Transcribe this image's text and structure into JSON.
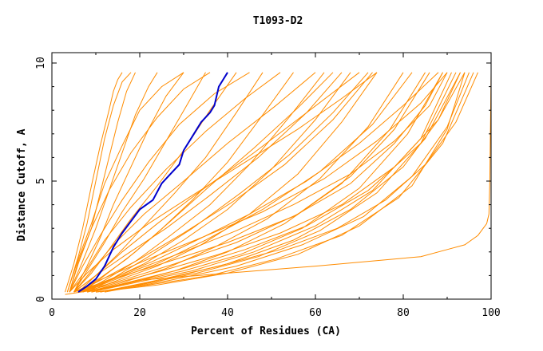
{
  "chart_data": {
    "type": "line",
    "title": "T1093-D2",
    "xlabel": "Percent of Residues (CA)",
    "ylabel": "Distance Cutoff, A",
    "xlim": [
      0,
      100
    ],
    "ylim": [
      0,
      10
    ],
    "x_ticks": [
      0,
      20,
      40,
      60,
      80,
      100
    ],
    "x_tick_labels": [
      "0",
      "20",
      "40",
      "60",
      "80",
      "100"
    ],
    "y_ticks": [
      0,
      5,
      10
    ],
    "y_tick_labels": [
      "0",
      "5",
      "10"
    ],
    "grid": false,
    "legend": "none",
    "colors": {
      "highlight": "#0000cc",
      "others": "#ff8c00"
    },
    "highlight_series": {
      "x": [
        6,
        8,
        10,
        12,
        14,
        16,
        18,
        20,
        23,
        25,
        27,
        29,
        30,
        32,
        34,
        36,
        37,
        38,
        40
      ],
      "y": [
        0.3,
        0.55,
        0.85,
        1.4,
        2.2,
        2.8,
        3.3,
        3.8,
        4.2,
        4.9,
        5.3,
        5.7,
        6.3,
        6.9,
        7.5,
        7.9,
        8.2,
        9.0,
        9.6
      ]
    },
    "series": [
      {
        "x": [
          3,
          5,
          7,
          9,
          11,
          13,
          14,
          15,
          16
        ],
        "y": [
          0.3,
          1.5,
          3.0,
          4.8,
          6.5,
          8.0,
          8.8,
          9.3,
          9.6
        ]
      },
      {
        "x": [
          3.5,
          6,
          8,
          10,
          12,
          14,
          16,
          18
        ],
        "y": [
          0.3,
          1.8,
          3.2,
          5.0,
          6.8,
          8.2,
          9.2,
          9.6
        ]
      },
      {
        "x": [
          4,
          6,
          9,
          11,
          13,
          15,
          17,
          19
        ],
        "y": [
          0.3,
          1.5,
          3.0,
          4.5,
          6.0,
          7.5,
          8.8,
          9.6
        ]
      },
      {
        "x": [
          4,
          7,
          10,
          13,
          16,
          19,
          22,
          24
        ],
        "y": [
          0.3,
          1.6,
          3.0,
          4.6,
          6.2,
          7.8,
          9.0,
          9.6
        ]
      },
      {
        "x": [
          5,
          8,
          11,
          14,
          18,
          22,
          26,
          30
        ],
        "y": [
          0.3,
          1.4,
          2.6,
          4.0,
          5.6,
          7.2,
          8.6,
          9.6
        ]
      },
      {
        "x": [
          5,
          8,
          12,
          16,
          21,
          26,
          31,
          35
        ],
        "y": [
          0.3,
          1.2,
          2.4,
          3.7,
          5.1,
          6.7,
          8.3,
          9.6
        ]
      },
      {
        "x": [
          5,
          9,
          13,
          18,
          24,
          30,
          36,
          42
        ],
        "y": [
          0.3,
          1.1,
          2.1,
          3.4,
          4.8,
          6.3,
          8.0,
          9.6
        ]
      },
      {
        "x": [
          6,
          10,
          15,
          21,
          28,
          35,
          42,
          48
        ],
        "y": [
          0.3,
          1.0,
          1.9,
          3.1,
          4.5,
          6.0,
          7.9,
          9.6
        ]
      },
      {
        "x": [
          6,
          11,
          17,
          24,
          32,
          40,
          48,
          55
        ],
        "y": [
          0.3,
          0.9,
          1.7,
          2.8,
          4.2,
          5.8,
          7.8,
          9.6
        ]
      },
      {
        "x": [
          7,
          12,
          19,
          27,
          36,
          45,
          54,
          62
        ],
        "y": [
          0.3,
          0.8,
          1.6,
          2.7,
          4.0,
          5.7,
          7.7,
          9.6
        ]
      },
      {
        "x": [
          7,
          13,
          21,
          30,
          40,
          50,
          60,
          68
        ],
        "y": [
          0.3,
          0.8,
          1.5,
          2.5,
          3.8,
          5.5,
          7.6,
          9.6
        ]
      },
      {
        "x": [
          8,
          15,
          24,
          34,
          45,
          56,
          66,
          74
        ],
        "y": [
          0.3,
          0.8,
          1.4,
          2.3,
          3.6,
          5.3,
          7.5,
          9.6
        ]
      },
      {
        "x": [
          8,
          16,
          26,
          37,
          49,
          61,
          72,
          80
        ],
        "y": [
          0.3,
          0.7,
          1.3,
          2.2,
          3.4,
          5.1,
          7.3,
          9.6
        ]
      },
      {
        "x": [
          9,
          17,
          28,
          40,
          53,
          66,
          77,
          85
        ],
        "y": [
          0.3,
          0.7,
          1.2,
          2.0,
          3.2,
          4.9,
          7.2,
          9.6
        ]
      },
      {
        "x": [
          9,
          18,
          30,
          43,
          57,
          70,
          81,
          89
        ],
        "y": [
          0.3,
          0.7,
          1.2,
          1.9,
          3.0,
          4.7,
          7.0,
          9.6
        ]
      },
      {
        "x": [
          10,
          20,
          33,
          47,
          61,
          74,
          85,
          93
        ],
        "y": [
          0.3,
          0.6,
          1.1,
          1.8,
          2.9,
          4.5,
          6.8,
          9.6
        ]
      },
      {
        "x": [
          10,
          22,
          36,
          51,
          66,
          79,
          89,
          96
        ],
        "y": [
          0.3,
          0.6,
          1.0,
          1.7,
          2.7,
          4.3,
          6.6,
          9.6
        ]
      },
      {
        "x": [
          6,
          12,
          20,
          30,
          42,
          55,
          68,
          78,
          86,
          90
        ],
        "y": [
          0.3,
          0.7,
          1.3,
          2.0,
          2.9,
          4.0,
          5.3,
          6.7,
          8.2,
          9.6
        ]
      },
      {
        "x": [
          7,
          15,
          25,
          38,
          52,
          66,
          78,
          88,
          94
        ],
        "y": [
          0.3,
          0.7,
          1.2,
          1.9,
          2.8,
          4.0,
          5.6,
          7.6,
          9.6
        ]
      },
      {
        "x": [
          8,
          18,
          30,
          44,
          58,
          72,
          84,
          92
        ],
        "y": [
          0.3,
          0.7,
          1.3,
          2.1,
          3.1,
          4.6,
          6.6,
          9.6
        ]
      },
      {
        "x": [
          11,
          25,
          40,
          55,
          68,
          80,
          88,
          93
        ],
        "y": [
          0.3,
          0.8,
          1.5,
          2.5,
          3.8,
          5.6,
          7.6,
          9.6
        ]
      },
      {
        "x": [
          12,
          27,
          42,
          57,
          71,
          82,
          90,
          95
        ],
        "y": [
          0.3,
          0.8,
          1.4,
          2.3,
          3.5,
          5.2,
          7.3,
          9.6
        ]
      },
      {
        "x": [
          6,
          14,
          23,
          33,
          45,
          58,
          70,
          80,
          88
        ],
        "y": [
          0.3,
          0.9,
          1.6,
          2.5,
          3.6,
          5.0,
          6.6,
          8.2,
          9.6
        ]
      },
      {
        "x": [
          5,
          10,
          16,
          24,
          34,
          46,
          58,
          70
        ],
        "y": [
          0.3,
          1.0,
          2.0,
          3.2,
          4.6,
          6.2,
          7.9,
          9.6
        ]
      },
      {
        "x": [
          5,
          9,
          14,
          21,
          30,
          40,
          51,
          60
        ],
        "y": [
          0.3,
          1.2,
          2.3,
          3.6,
          5.0,
          6.6,
          8.2,
          9.6
        ]
      },
      {
        "x": [
          4,
          8,
          12,
          18,
          26,
          35,
          44,
          52
        ],
        "y": [
          0.3,
          1.3,
          2.5,
          3.9,
          5.5,
          7.1,
          8.5,
          9.6
        ]
      },
      {
        "x": [
          4,
          7,
          11,
          16,
          22,
          29,
          37,
          45
        ],
        "y": [
          0.3,
          1.4,
          2.7,
          4.2,
          5.8,
          7.4,
          8.7,
          9.6
        ]
      },
      {
        "x": [
          4,
          6,
          9,
          13,
          18,
          24,
          30,
          36
        ],
        "y": [
          0.3,
          1.6,
          3.0,
          4.6,
          6.2,
          7.7,
          8.9,
          9.6
        ]
      },
      {
        "x": [
          3.5,
          6,
          9,
          12,
          16,
          20,
          25,
          30
        ],
        "y": [
          0.3,
          1.7,
          3.2,
          4.9,
          6.5,
          8.0,
          9.0,
          9.6
        ]
      },
      {
        "x": [
          5,
          10,
          17,
          26,
          36,
          47,
          58,
          66
        ],
        "y": [
          0.3,
          1.0,
          1.9,
          3.0,
          4.4,
          6.0,
          7.9,
          9.6
        ]
      },
      {
        "x": [
          6,
          12,
          20,
          30,
          41,
          53,
          64,
          73
        ],
        "y": [
          0.3,
          0.9,
          1.7,
          2.8,
          4.1,
          5.7,
          7.6,
          9.6
        ]
      },
      {
        "x": [
          7,
          14,
          24,
          35,
          48,
          61,
          73,
          82
        ],
        "y": [
          0.3,
          0.8,
          1.5,
          2.5,
          3.8,
          5.4,
          7.4,
          9.6
        ]
      },
      {
        "x": [
          9,
          19,
          32,
          46,
          60,
          73,
          84,
          91
        ],
        "y": [
          0.3,
          0.7,
          1.2,
          2.0,
          3.1,
          4.6,
          6.8,
          9.6
        ]
      },
      {
        "x": [
          10,
          24,
          40,
          56,
          70,
          82,
          90,
          94
        ],
        "y": [
          0.3,
          0.6,
          1.1,
          1.9,
          3.1,
          4.8,
          7.2,
          9.6
        ]
      },
      {
        "x": [
          8,
          14,
          22,
          32,
          43,
          54,
          64,
          72
        ],
        "y": [
          0.3,
          0.9,
          1.8,
          3.0,
          4.5,
          6.1,
          7.9,
          9.6
        ]
      },
      {
        "x": [
          7,
          12,
          19,
          27,
          36,
          46,
          56,
          64
        ],
        "y": [
          0.3,
          1.0,
          2.0,
          3.3,
          4.8,
          6.4,
          8.1,
          9.6
        ]
      },
      {
        "x": [
          5,
          12,
          22,
          34,
          48,
          62,
          74,
          84,
          90
        ],
        "y": [
          0.3,
          0.9,
          1.7,
          2.6,
          3.7,
          5.1,
          6.7,
          8.3,
          9.6
        ]
      },
      {
        "x": [
          6,
          16,
          28,
          42,
          56,
          68,
          78,
          86
        ],
        "y": [
          0.3,
          0.8,
          1.5,
          2.4,
          3.6,
          5.2,
          7.2,
          9.6
        ]
      },
      {
        "x": [
          4,
          8,
          14,
          22,
          32,
          44,
          56,
          66,
          74
        ],
        "y": [
          0.3,
          1.1,
          2.1,
          3.2,
          4.4,
          5.8,
          7.2,
          8.5,
          9.6
        ]
      },
      {
        "x": [
          5,
          13,
          25,
          40,
          55,
          68,
          78,
          85,
          89
        ],
        "y": [
          0.3,
          0.8,
          1.5,
          2.4,
          3.5,
          4.9,
          6.6,
          8.2,
          9.6
        ]
      },
      {
        "x": [
          11,
          24,
          38,
          52,
          65,
          76,
          85,
          92,
          97
        ],
        "y": [
          0.3,
          0.8,
          1.4,
          2.1,
          3.0,
          4.2,
          5.7,
          7.5,
          9.6
        ]
      },
      {
        "x": [
          3,
          10,
          20,
          40,
          60,
          84,
          90,
          94,
          97,
          99,
          99.5,
          99.6,
          99.7,
          99.8,
          99.9,
          100
        ],
        "y": [
          0.2,
          0.4,
          0.8,
          1.1,
          1.4,
          1.8,
          2.1,
          2.3,
          2.7,
          3.2,
          3.6,
          4.2,
          5.0,
          6.5,
          8.0,
          9.6
        ]
      }
    ]
  }
}
